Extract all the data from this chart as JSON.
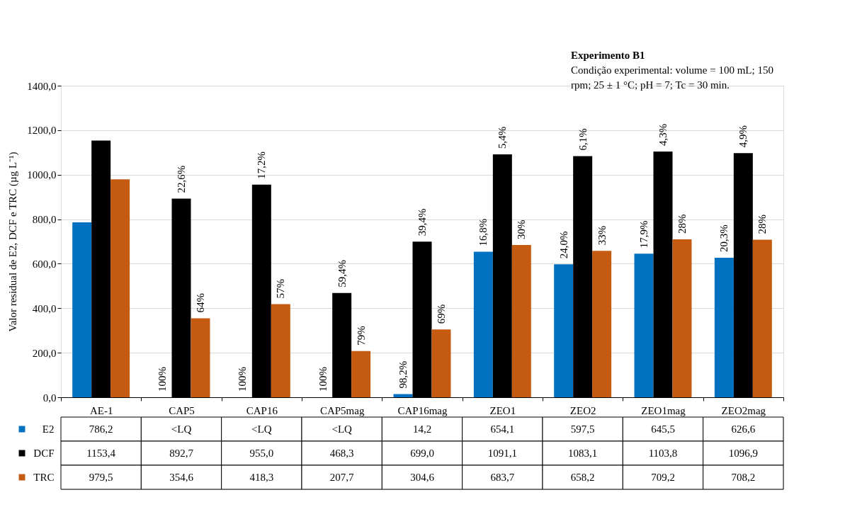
{
  "chart_data": {
    "type": "bar",
    "ylabel": "Valor residual de E2, DCF e TRC (µg L⁻¹)",
    "categories": [
      "AE-1",
      "CAP5",
      "CAP16",
      "CAP5mag",
      "CAP16mag",
      "ZEO1",
      "ZEO2",
      "ZEO1mag",
      "ZEO2mag"
    ],
    "series": [
      {
        "name": "E2",
        "color": "#0070c0",
        "values": [
          786.2,
          null,
          null,
          null,
          14.2,
          654.1,
          597.5,
          645.5,
          626.6
        ],
        "value_labels": [
          "786,2",
          "<LQ",
          "<LQ",
          "<LQ",
          "14,2",
          "654,1",
          "597,5",
          "645,5",
          "626,6"
        ]
      },
      {
        "name": "DCF",
        "color": "#000000",
        "values": [
          1153.4,
          892.7,
          955.0,
          468.3,
          699.0,
          1091.1,
          1083.1,
          1103.8,
          1096.9
        ],
        "value_labels": [
          "1153,4",
          "892,7",
          "955,0",
          "468,3",
          "699,0",
          "1091,1",
          "1083,1",
          "1103,8",
          "1096,9"
        ]
      },
      {
        "name": "TRC",
        "color": "#c55a11",
        "values": [
          979.5,
          354.6,
          418.3,
          207.7,
          304.6,
          683.7,
          658.2,
          709.2,
          708.2
        ],
        "value_labels": [
          "979,5",
          "354,6",
          "418,3",
          "207,7",
          "304,6",
          "683,7",
          "658,2",
          "709,2",
          "708,2"
        ]
      }
    ],
    "ylim": [
      0,
      1400
    ],
    "yticks": [
      {
        "value": 0,
        "label": "0,0"
      },
      {
        "value": 200,
        "label": "200,0"
      },
      {
        "value": 400,
        "label": "400,0"
      },
      {
        "value": 600,
        "label": "600,0"
      },
      {
        "value": 800,
        "label": "800,0"
      },
      {
        "value": 1000,
        "label": "1000,0"
      },
      {
        "value": 1200,
        "label": "1200,0"
      },
      {
        "value": 1400,
        "label": "1400,0"
      }
    ],
    "grid": "y",
    "legend": "bottom",
    "annotations": [
      "Experimento B1",
      "Condição experimental: volume = 100 mL; 150 rpm; 25 ± 1 °C; pH = 7; Tc = 30 min.",
      "100%",
      "22,6%",
      "64%",
      "100%",
      "17,2%",
      "57%",
      "100%",
      "59,4%",
      "79%",
      "98,2%",
      "39,4%",
      "69%",
      "16,8%",
      "5,4%",
      "30%",
      "24,0%",
      "6,1%",
      "33%",
      "17,9%",
      "4,3%",
      "28%",
      "20,3%",
      "4,9%",
      "28%"
    ]
  }
}
